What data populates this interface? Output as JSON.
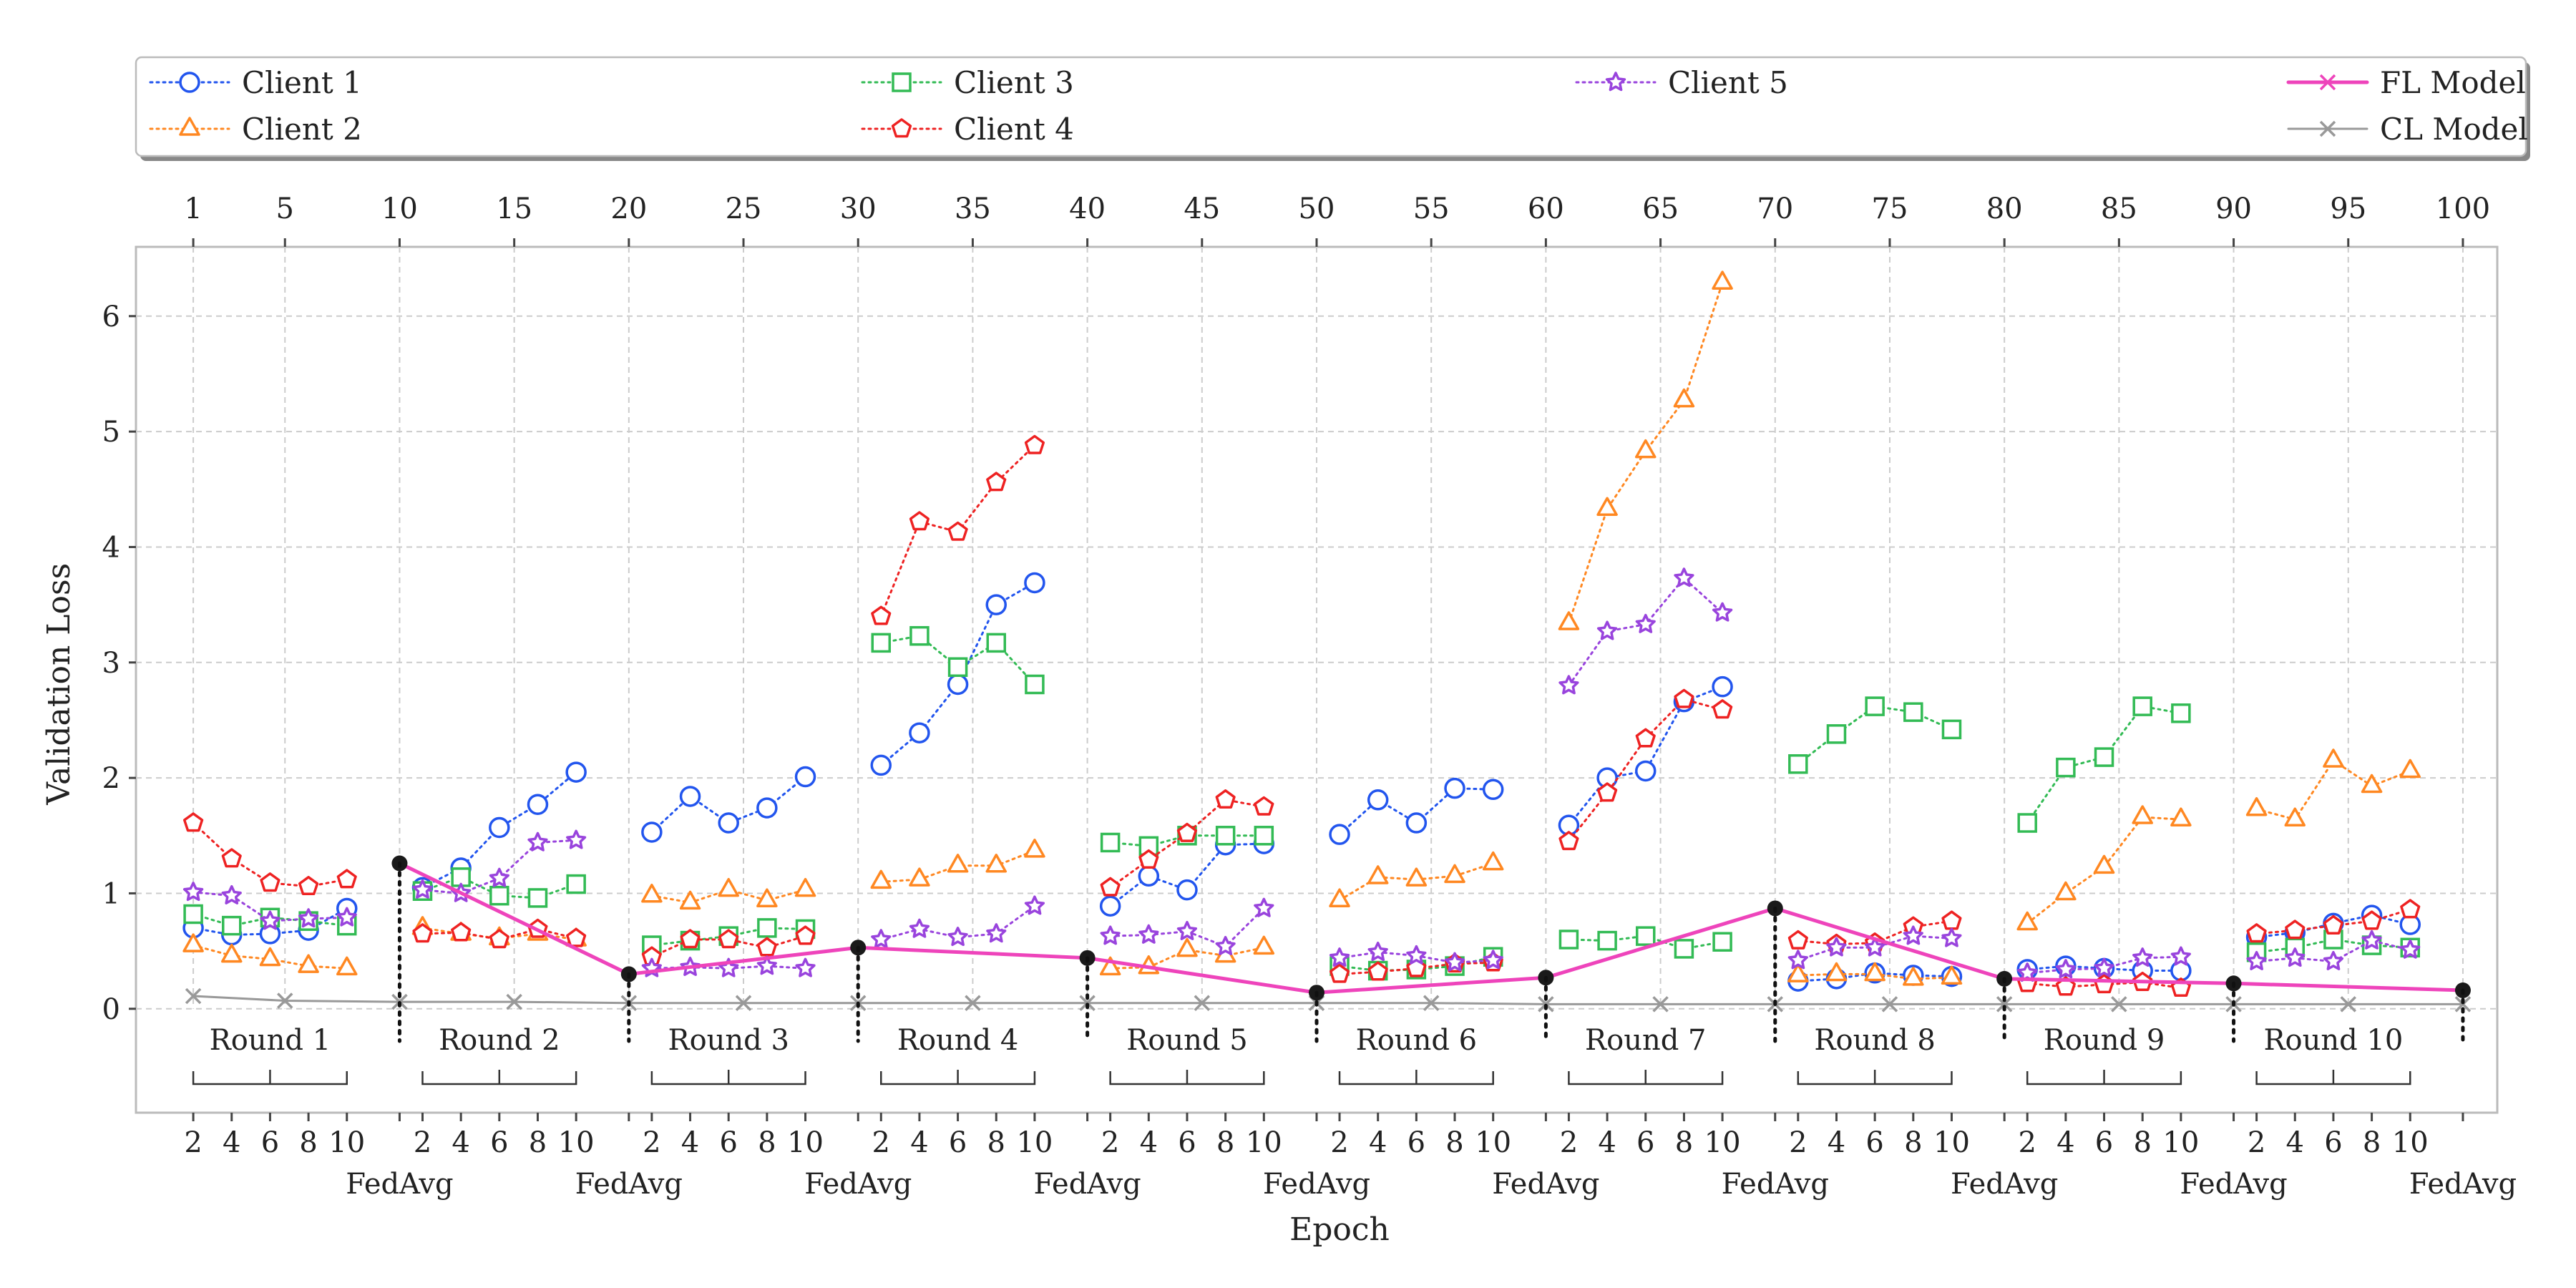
{
  "chart_data": {
    "type": "line",
    "xlabel": "Epoch",
    "ylabel": "Validation Loss",
    "ylim": [
      -0.9,
      6.6
    ],
    "xlim": [
      -1.5,
      101.5
    ],
    "grid": true,
    "legend_position": "top",
    "y_ticks": [
      0,
      1,
      2,
      3,
      4,
      5,
      6
    ],
    "top_ticks": [
      1,
      5,
      10,
      15,
      20,
      25,
      30,
      35,
      40,
      45,
      50,
      55,
      60,
      65,
      70,
      75,
      80,
      85,
      90,
      95,
      100
    ],
    "bottom_ticks": [
      "2",
      "4",
      "6",
      "8",
      "10"
    ],
    "round_labels": [
      "Round 1",
      "Round 2",
      "Round 3",
      "Round 4",
      "Round 5",
      "Round 6",
      "Round 7",
      "Round 8",
      "Round 9",
      "Round 10"
    ],
    "fedavg_label": "FedAvg",
    "fedavg_epochs": [
      10,
      20,
      30,
      40,
      50,
      60,
      70,
      80,
      90,
      100
    ],
    "clients": [
      {
        "name": "Client 1",
        "color": "#2255ee",
        "marker": "circle",
        "rounds": [
          [
            0.7,
            0.64,
            0.65,
            0.68,
            0.87
          ],
          [
            1.05,
            1.22,
            1.57,
            1.77,
            2.05
          ],
          [
            1.53,
            1.84,
            1.61,
            1.74,
            2.01
          ],
          [
            2.11,
            2.39,
            2.81,
            3.5,
            3.69
          ],
          [
            0.89,
            1.15,
            1.03,
            1.42,
            1.43
          ],
          [
            1.51,
            1.81,
            1.61,
            1.91,
            1.9
          ],
          [
            1.59,
            2.0,
            2.06,
            2.66,
            2.79
          ],
          [
            0.24,
            0.26,
            0.31,
            0.29,
            0.28
          ],
          [
            0.34,
            0.37,
            0.35,
            0.33,
            0.33
          ],
          [
            0.62,
            0.66,
            0.74,
            0.81,
            0.73
          ]
        ]
      },
      {
        "name": "Client 2",
        "color": "#ff8822",
        "marker": "triangle",
        "rounds": [
          [
            0.55,
            0.46,
            0.43,
            0.37,
            0.35
          ],
          [
            0.7,
            0.65,
            0.61,
            0.65,
            0.6
          ],
          [
            0.98,
            0.92,
            1.03,
            0.94,
            1.03
          ],
          [
            1.1,
            1.12,
            1.24,
            1.24,
            1.37
          ],
          [
            0.35,
            0.36,
            0.51,
            0.46,
            0.53
          ],
          [
            0.94,
            1.14,
            1.12,
            1.15,
            1.26
          ],
          [
            3.34,
            4.33,
            4.83,
            5.27,
            6.29
          ],
          [
            0.29,
            0.3,
            0.3,
            0.26,
            0.27
          ],
          [
            0.74,
            1.0,
            1.23,
            1.66,
            1.64
          ],
          [
            1.73,
            1.64,
            2.15,
            1.93,
            2.06
          ]
        ]
      },
      {
        "name": "Client 3",
        "color": "#33bb55",
        "marker": "square",
        "rounds": [
          [
            0.82,
            0.72,
            0.79,
            0.76,
            0.72
          ],
          [
            1.02,
            1.14,
            0.98,
            0.96,
            1.08
          ],
          [
            0.55,
            0.59,
            0.63,
            0.7,
            0.69
          ],
          [
            3.17,
            3.23,
            2.96,
            3.17,
            2.81
          ],
          [
            1.44,
            1.41,
            1.5,
            1.5,
            1.5
          ],
          [
            0.37,
            0.33,
            0.34,
            0.37,
            0.45
          ],
          [
            0.6,
            0.59,
            0.63,
            0.52,
            0.58
          ],
          [
            2.12,
            2.38,
            2.62,
            2.57,
            2.42
          ],
          [
            1.61,
            2.09,
            2.18,
            2.62,
            2.56
          ],
          [
            0.49,
            0.53,
            0.6,
            0.55,
            0.53
          ]
        ]
      },
      {
        "name": "Client 4",
        "color": "#ee2222",
        "marker": "pentagon",
        "rounds": [
          [
            1.61,
            1.3,
            1.09,
            1.06,
            1.12
          ],
          [
            0.65,
            0.66,
            0.6,
            0.69,
            0.61
          ],
          [
            0.45,
            0.6,
            0.6,
            0.53,
            0.63
          ],
          [
            3.4,
            4.22,
            4.13,
            4.56,
            4.88
          ],
          [
            1.05,
            1.29,
            1.52,
            1.81,
            1.75
          ],
          [
            0.3,
            0.32,
            0.35,
            0.39,
            0.4
          ],
          [
            1.45,
            1.87,
            2.34,
            2.68,
            2.59
          ],
          [
            0.59,
            0.56,
            0.57,
            0.71,
            0.76
          ],
          [
            0.22,
            0.19,
            0.21,
            0.23,
            0.18
          ],
          [
            0.65,
            0.68,
            0.72,
            0.76,
            0.86
          ]
        ]
      },
      {
        "name": "Client 5",
        "color": "#9944dd",
        "marker": "star",
        "rounds": [
          [
            1.01,
            0.98,
            0.76,
            0.78,
            0.79
          ],
          [
            1.03,
            1.0,
            1.13,
            1.44,
            1.46
          ],
          [
            0.35,
            0.36,
            0.35,
            0.37,
            0.35
          ],
          [
            0.6,
            0.69,
            0.62,
            0.65,
            0.89
          ],
          [
            0.63,
            0.64,
            0.67,
            0.54,
            0.87
          ],
          [
            0.44,
            0.49,
            0.46,
            0.4,
            0.42
          ],
          [
            2.8,
            3.27,
            3.33,
            3.73,
            3.43
          ],
          [
            0.42,
            0.53,
            0.53,
            0.63,
            0.61
          ],
          [
            0.31,
            0.34,
            0.35,
            0.44,
            0.45
          ],
          [
            0.41,
            0.44,
            0.41,
            0.59,
            0.51
          ]
        ]
      }
    ],
    "fl_model": {
      "name": "FL Model",
      "color": "#ee44bb",
      "marker": "x",
      "x": [
        10,
        20,
        30,
        40,
        50,
        60,
        70,
        80,
        90,
        100
      ],
      "y": [
        1.26,
        0.3,
        0.53,
        0.44,
        0.14,
        0.27,
        0.87,
        0.26,
        0.22,
        0.16
      ]
    },
    "cl_model": {
      "name": "CL Model",
      "color": "#999999",
      "marker": "x",
      "x": [
        1,
        5,
        10,
        15,
        20,
        25,
        30,
        35,
        40,
        45,
        50,
        55,
        60,
        65,
        70,
        75,
        80,
        85,
        90,
        95,
        100
      ],
      "y": [
        0.11,
        0.07,
        0.06,
        0.06,
        0.05,
        0.05,
        0.05,
        0.05,
        0.05,
        0.05,
        0.05,
        0.05,
        0.04,
        0.04,
        0.04,
        0.04,
        0.04,
        0.04,
        0.04,
        0.04,
        0.04
      ]
    },
    "fedavg_point_color": "#1a1a1a"
  }
}
